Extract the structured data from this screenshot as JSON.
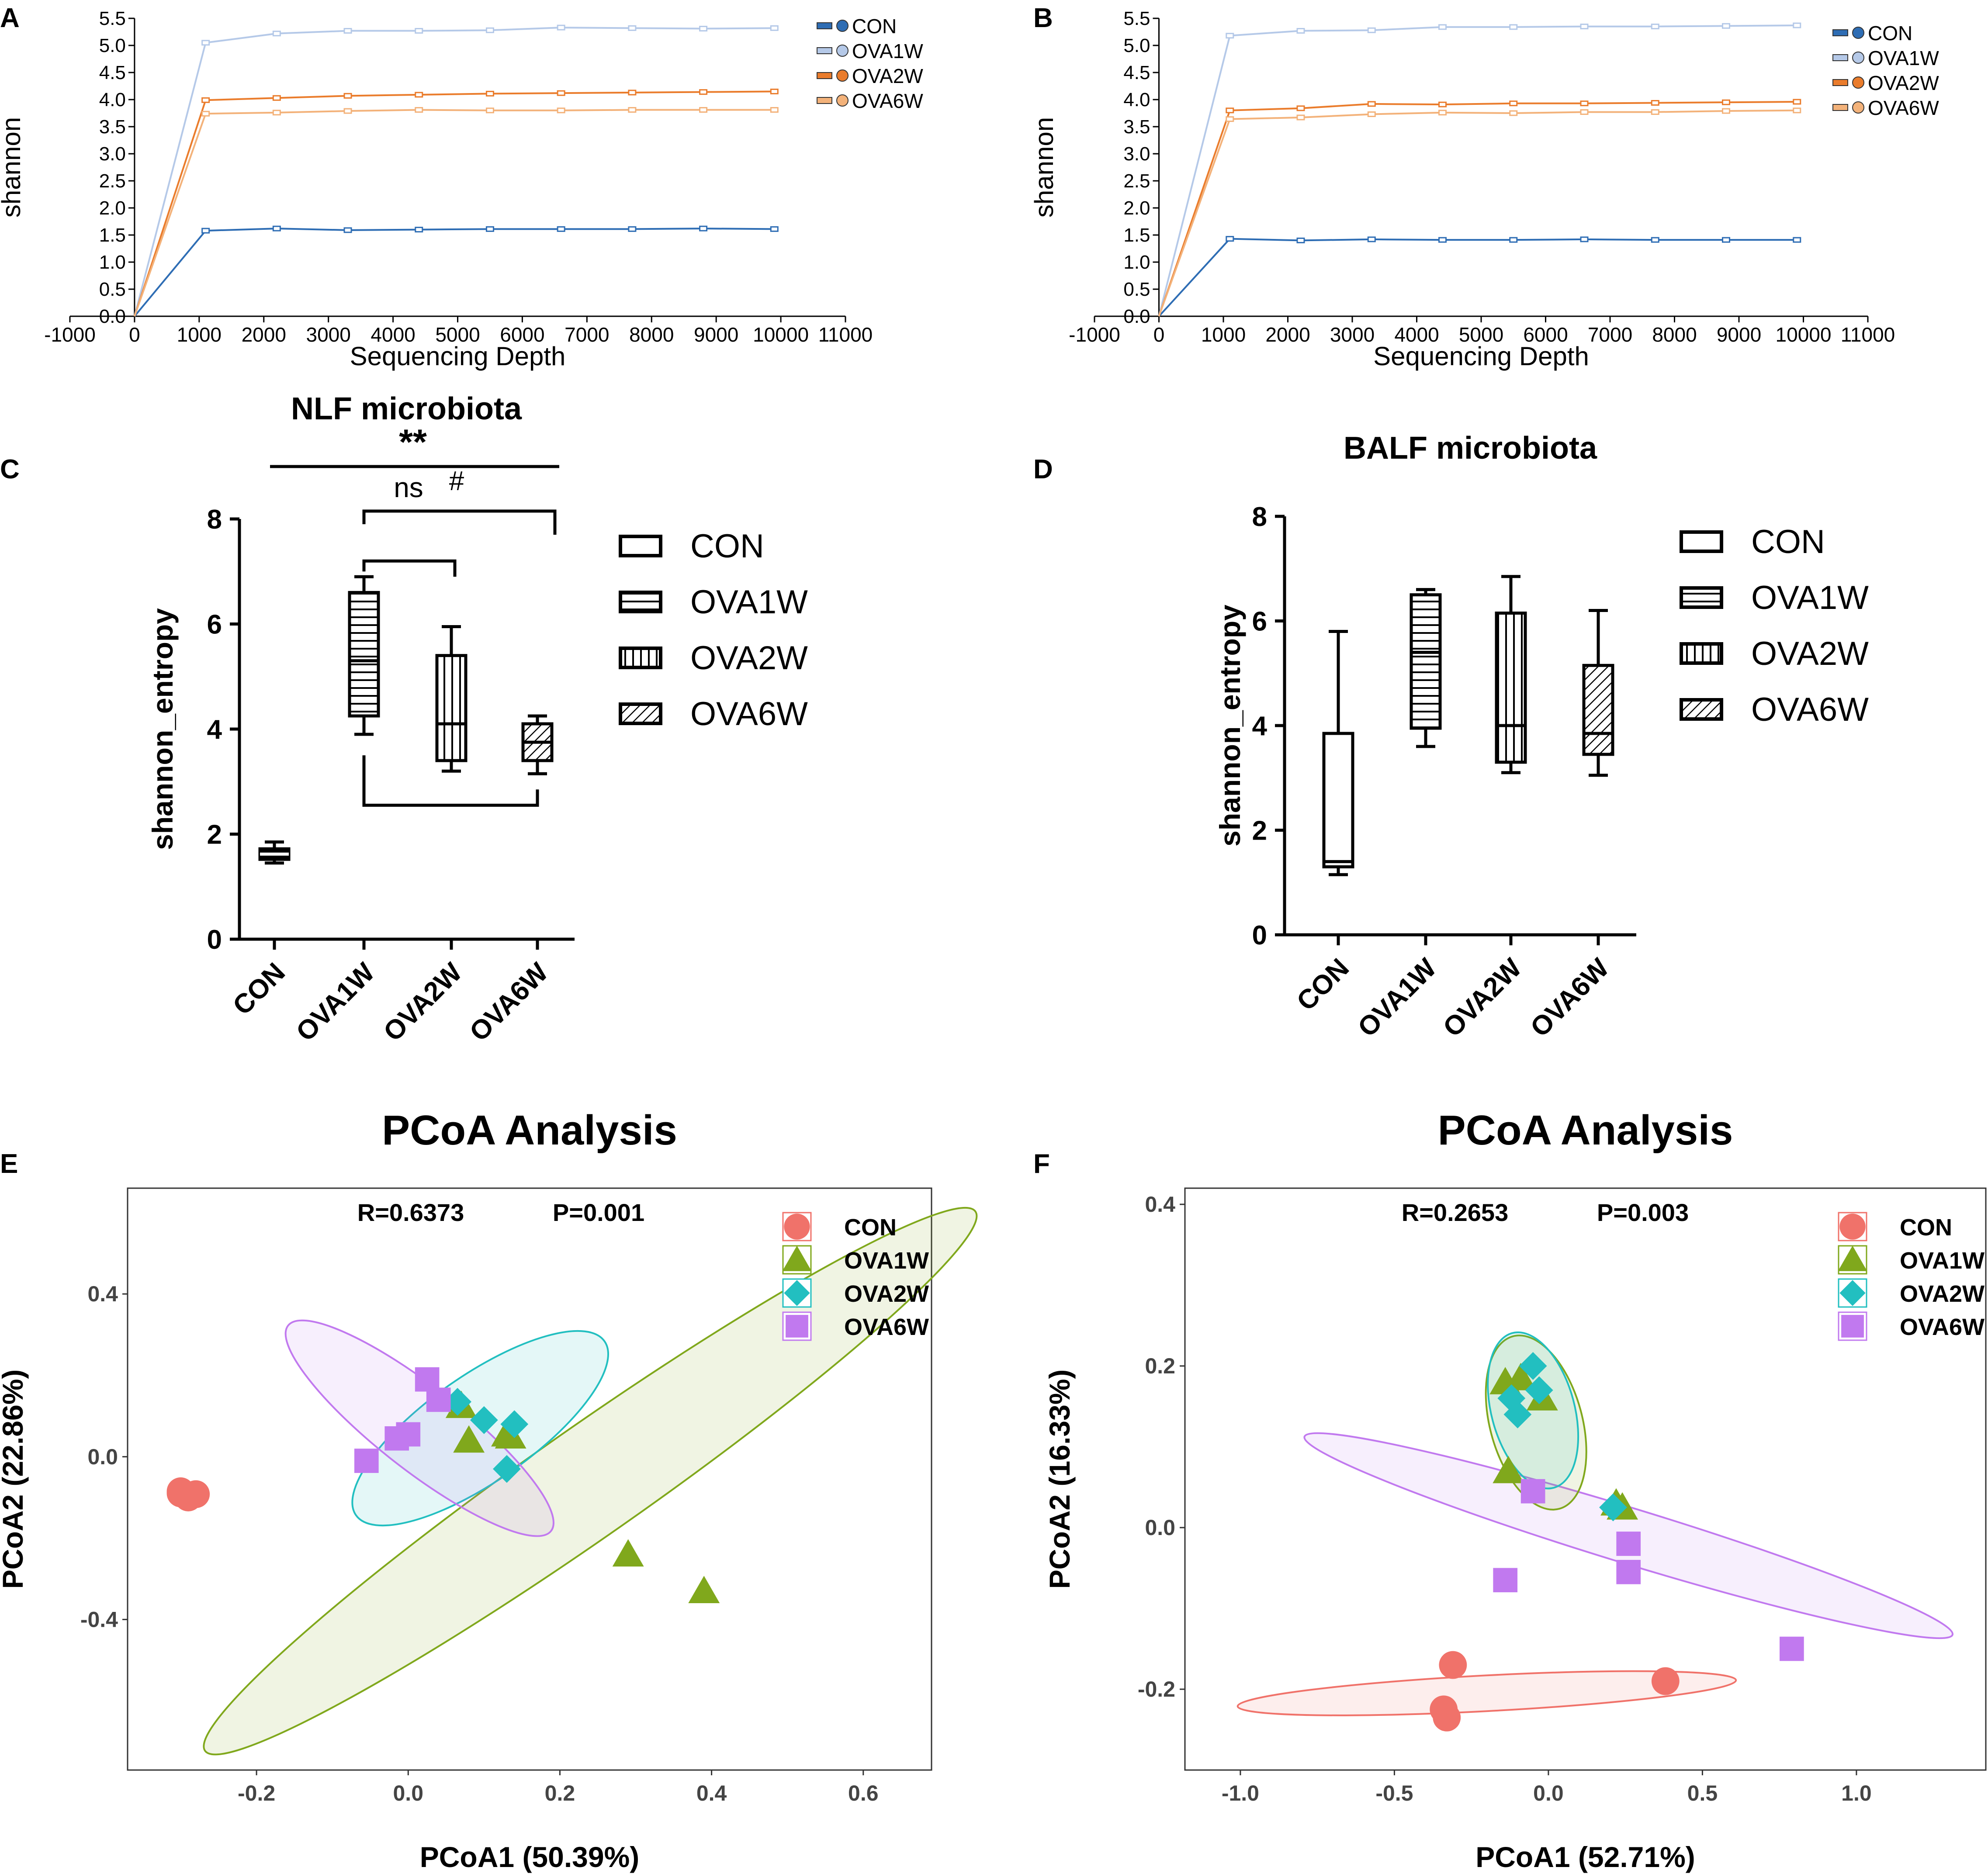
{
  "colors": {
    "CON": "#2e6db4",
    "OVA1W": "#b5c9e8",
    "OVA2W": "#ea7c2c",
    "OVA6W": "#f3b27a",
    "pcoa_CON": "#f0726a",
    "pcoa_OVA1W": "#80a81c",
    "pcoa_OVA2W": "#22bfc0",
    "pcoa_OVA6W": "#c179ef",
    "axis": "#000000"
  },
  "panels": [
    {
      "id": "A",
      "label": "A"
    },
    {
      "id": "B",
      "label": "B"
    },
    {
      "id": "C",
      "label": "C"
    },
    {
      "id": "D",
      "label": "D"
    },
    {
      "id": "E",
      "label": "E"
    },
    {
      "id": "F",
      "label": "F"
    }
  ],
  "chart_data": [
    {
      "id": "A",
      "type": "line",
      "title": "",
      "xlabel": "Sequencing Depth",
      "ylabel": "shannon",
      "xlim": [
        -1000,
        11000
      ],
      "ylim": [
        0,
        5.5
      ],
      "xticks": [
        -1000,
        0,
        1000,
        2000,
        3000,
        4000,
        5000,
        6000,
        7000,
        8000,
        9000,
        10000,
        11000
      ],
      "yticks": [
        0,
        0.5,
        1,
        1.5,
        2,
        2.5,
        3,
        3.5,
        4,
        4.5,
        5,
        5.5
      ],
      "xtick_labels": [
        "-1000",
        "0",
        "1000",
        "2000",
        "3000",
        "4000",
        "5000",
        "6000",
        "7000",
        "8000",
        "9000",
        "10000",
        "11000"
      ],
      "ytick_labels": [
        "0.0",
        "0.5",
        "1.0",
        "1.5",
        "2.0",
        "2.5",
        "3.0",
        "3.5",
        "4.0",
        "4.5",
        "5.0",
        "5.5"
      ],
      "legend": [
        "CON",
        "OVA1W",
        "OVA2W",
        "OVA6W"
      ],
      "legend_position": "top-right",
      "x": [
        0,
        1100,
        2200,
        3300,
        4400,
        5500,
        6600,
        7700,
        8800,
        9900
      ],
      "series": [
        {
          "name": "CON",
          "values": [
            0,
            1.58,
            1.62,
            1.59,
            1.6,
            1.61,
            1.61,
            1.61,
            1.62,
            1.61
          ]
        },
        {
          "name": "OVA1W",
          "values": [
            0,
            5.05,
            5.22,
            5.27,
            5.27,
            5.28,
            5.33,
            5.32,
            5.31,
            5.32
          ]
        },
        {
          "name": "OVA2W",
          "values": [
            0,
            3.99,
            4.03,
            4.07,
            4.09,
            4.11,
            4.12,
            4.13,
            4.14,
            4.15
          ]
        },
        {
          "name": "OVA6W",
          "values": [
            0,
            3.74,
            3.76,
            3.79,
            3.81,
            3.8,
            3.8,
            3.81,
            3.81,
            3.81
          ]
        }
      ]
    },
    {
      "id": "B",
      "type": "line",
      "title": "",
      "xlabel": "Sequencing Depth",
      "ylabel": "shannon",
      "xlim": [
        -1000,
        11000
      ],
      "ylim": [
        0,
        5.5
      ],
      "xticks": [
        -1000,
        0,
        1000,
        2000,
        3000,
        4000,
        5000,
        6000,
        7000,
        8000,
        9000,
        10000,
        11000
      ],
      "yticks": [
        0,
        0.5,
        1,
        1.5,
        2,
        2.5,
        3,
        3.5,
        4,
        4.5,
        5,
        5.5
      ],
      "xtick_labels": [
        "-1000",
        "0",
        "1000",
        "2000",
        "3000",
        "4000",
        "5000",
        "6000",
        "7000",
        "8000",
        "9000",
        "10000",
        "11000"
      ],
      "ytick_labels": [
        "0.0",
        "0.5",
        "1.0",
        "1.5",
        "2.0",
        "2.5",
        "3.0",
        "3.5",
        "4.0",
        "4.5",
        "5.0",
        "5.5"
      ],
      "legend": [
        "CON",
        "OVA1W",
        "OVA2W",
        "OVA6W"
      ],
      "legend_position": "top-right",
      "x": [
        0,
        1100,
        2200,
        3300,
        4400,
        5500,
        6600,
        7700,
        8800,
        9900
      ],
      "series": [
        {
          "name": "CON",
          "values": [
            0,
            1.43,
            1.4,
            1.42,
            1.41,
            1.41,
            1.42,
            1.41,
            1.41,
            1.41
          ]
        },
        {
          "name": "OVA1W",
          "values": [
            0,
            5.18,
            5.27,
            5.28,
            5.34,
            5.34,
            5.35,
            5.35,
            5.36,
            5.37
          ]
        },
        {
          "name": "OVA2W",
          "values": [
            0,
            3.8,
            3.84,
            3.92,
            3.91,
            3.93,
            3.93,
            3.94,
            3.95,
            3.96
          ]
        },
        {
          "name": "OVA6W",
          "values": [
            0,
            3.64,
            3.67,
            3.73,
            3.76,
            3.75,
            3.77,
            3.77,
            3.79,
            3.8
          ]
        }
      ]
    },
    {
      "id": "C",
      "type": "box",
      "title": "NLF microbiota",
      "xlabel": "",
      "ylabel": "shannon_entropy",
      "ylim": [
        0,
        8
      ],
      "yticks": [
        0,
        2,
        4,
        6,
        8
      ],
      "categories": [
        "CON",
        "OVA1W",
        "OVA2W",
        "OVA6W"
      ],
      "legend": [
        "CON",
        "OVA1W",
        "OVA2W",
        "OVA6W"
      ],
      "legend_position": "top-right",
      "boxes": [
        {
          "name": "CON",
          "min": 1.45,
          "q1": 1.52,
          "median": 1.62,
          "q3": 1.72,
          "max": 1.85,
          "pattern": "solid"
        },
        {
          "name": "OVA1W",
          "min": 3.9,
          "q1": 4.25,
          "median": 5.3,
          "q3": 6.6,
          "max": 6.9,
          "pattern": "horizontal"
        },
        {
          "name": "OVA2W",
          "min": 3.2,
          "q1": 3.4,
          "median": 4.1,
          "q3": 5.4,
          "max": 5.95,
          "pattern": "vertical"
        },
        {
          "name": "OVA6W",
          "min": 3.15,
          "q1": 3.4,
          "median": 3.75,
          "q3": 4.1,
          "max": 4.25,
          "pattern": "diagonal"
        }
      ],
      "annotations": [
        {
          "text": "**",
          "between": [
            "CON",
            "OVA6W"
          ]
        },
        {
          "text": "#",
          "between": [
            "CON",
            "OVA6W"
          ]
        },
        {
          "text": "ns",
          "between": [
            "OVA1W",
            "OVA6W"
          ]
        }
      ]
    },
    {
      "id": "D",
      "type": "box",
      "title": "BALF microbiota",
      "xlabel": "",
      "ylabel": "shannon_entropy",
      "ylim": [
        0,
        8
      ],
      "yticks": [
        0,
        2,
        4,
        6,
        8
      ],
      "categories": [
        "CON",
        "OVA1W",
        "OVA2W",
        "OVA6W"
      ],
      "legend": [
        "CON",
        "OVA1W",
        "OVA2W",
        "OVA6W"
      ],
      "legend_position": "top-right",
      "boxes": [
        {
          "name": "CON",
          "min": 1.15,
          "q1": 1.3,
          "median": 1.4,
          "q3": 3.85,
          "max": 5.8,
          "pattern": "none"
        },
        {
          "name": "OVA1W",
          "min": 3.6,
          "q1": 3.95,
          "median": 5.4,
          "q3": 6.5,
          "max": 6.6,
          "pattern": "horizontal"
        },
        {
          "name": "OVA2W",
          "min": 3.1,
          "q1": 3.3,
          "median": 4.0,
          "q3": 6.15,
          "max": 6.85,
          "pattern": "vertical"
        },
        {
          "name": "OVA6W",
          "min": 3.05,
          "q1": 3.45,
          "median": 3.85,
          "q3": 5.15,
          "max": 6.2,
          "pattern": "diagonal"
        }
      ]
    },
    {
      "id": "E",
      "type": "scatter",
      "title": "PCoA Analysis",
      "xlabel": "PCoA1 (50.39%)",
      "ylabel": "PCoA2 (22.86%)",
      "xlim": [
        -0.37,
        0.69
      ],
      "ylim": [
        -0.77,
        0.66
      ],
      "xticks": [
        -0.2,
        0.0,
        0.2,
        0.4,
        0.6
      ],
      "xtick_labels": [
        "-0.2",
        "0.0",
        "0.2",
        "0.4",
        "0.6"
      ],
      "yticks": [
        -0.4,
        0.0,
        0.4
      ],
      "ytick_labels": [
        "-0.4",
        "0.0",
        "0.4"
      ],
      "stat_R": "R=0.6373",
      "stat_P": "P=0.001",
      "legend": [
        "CON",
        "OVA1W",
        "OVA2W",
        "OVA6W"
      ],
      "legend_position": "top-right",
      "series": [
        {
          "name": "CON",
          "marker": "circle",
          "x": [
            -0.3,
            -0.29,
            -0.28,
            -0.29,
            -0.3
          ],
          "y": [
            -0.09,
            -0.095,
            -0.092,
            -0.1,
            -0.085
          ]
        },
        {
          "name": "OVA1W",
          "marker": "triangle",
          "x": [
            0.07,
            0.08,
            0.13,
            0.135,
            0.29,
            0.39
          ],
          "y": [
            0.125,
            0.04,
            0.055,
            0.05,
            -0.24,
            -0.33
          ]
        },
        {
          "name": "OVA2W",
          "marker": "diamond",
          "x": [
            0.065,
            0.1,
            0.14,
            0.13
          ],
          "y": [
            0.135,
            0.09,
            0.08,
            -0.03
          ]
        },
        {
          "name": "OVA6W",
          "marker": "square",
          "x": [
            -0.055,
            -0.015,
            0.0,
            0.025,
            0.04
          ],
          "y": [
            -0.01,
            0.045,
            0.055,
            0.19,
            0.14
          ]
        }
      ],
      "ellipses": [
        {
          "name": "OVA1W",
          "cx": 0.24,
          "cy": -0.06,
          "rx": 0.62,
          "ry": 0.072,
          "angle_deg": 35.0
        },
        {
          "name": "OVA2W",
          "cx": 0.095,
          "cy": 0.07,
          "rx": 0.2,
          "ry": 0.07,
          "angle_deg": 35.0
        },
        {
          "name": "OVA6W",
          "cx": 0.015,
          "cy": 0.07,
          "rx": 0.22,
          "ry": 0.055,
          "angle_deg": -38.0
        }
      ]
    },
    {
      "id": "F",
      "type": "scatter",
      "title": "PCoA Analysis",
      "xlabel": "PCoA1 (52.71%)",
      "ylabel": "PCoA2 (16.33%)",
      "xlim": [
        -1.18,
        1.42
      ],
      "ylim": [
        -0.3,
        0.42
      ],
      "xticks": [
        -1.0,
        -0.5,
        0.0,
        0.5,
        1.0
      ],
      "xtick_labels": [
        "-1.0",
        "-0.5",
        "0.0",
        "0.5",
        "1.0"
      ],
      "yticks": [
        -0.2,
        0.0,
        0.2,
        0.4
      ],
      "ytick_labels": [
        "-0.2",
        "0.0",
        "0.2",
        "0.4"
      ],
      "stat_R": "R=0.2653",
      "stat_P": "P=0.003",
      "legend": [
        "CON",
        "OVA1W",
        "OVA2W",
        "OVA6W"
      ],
      "legend_position": "top-right",
      "series": [
        {
          "name": "CON",
          "marker": "circle",
          "x": [
            -0.31,
            -0.34,
            -0.33,
            0.38
          ],
          "y": [
            -0.17,
            -0.225,
            -0.235,
            -0.19
          ]
        },
        {
          "name": "OVA1W",
          "marker": "triangle",
          "x": [
            -0.14,
            -0.09,
            -0.02,
            -0.13,
            0.22,
            0.24
          ],
          "y": [
            0.18,
            0.185,
            0.16,
            0.07,
            0.03,
            0.025
          ]
        },
        {
          "name": "OVA2W",
          "marker": "diamond",
          "x": [
            -0.12,
            -0.05,
            -0.03,
            -0.1,
            0.21
          ],
          "y": [
            0.16,
            0.2,
            0.17,
            0.14,
            0.025
          ]
        },
        {
          "name": "OVA6W",
          "marker": "square",
          "x": [
            -0.05,
            -0.14,
            0.26,
            0.26,
            0.79
          ],
          "y": [
            0.045,
            -0.065,
            -0.02,
            -0.055,
            -0.15
          ]
        }
      ],
      "ellipses": [
        {
          "name": "CON",
          "cx": -0.2,
          "cy": -0.205,
          "rx": 0.81,
          "ry": 0.058,
          "angle_deg": 3.0
        },
        {
          "name": "OVA6W",
          "cx": 0.26,
          "cy": -0.01,
          "rx": 1.1,
          "ry": 0.09,
          "angle_deg": -17.0
        },
        {
          "name": "OVA1W",
          "cx": -0.04,
          "cy": 0.13,
          "rx": 0.29,
          "ry": 0.15,
          "angle_deg": -75.0
        },
        {
          "name": "OVA2W",
          "cx": -0.05,
          "cy": 0.145,
          "rx": 0.26,
          "ry": 0.135,
          "angle_deg": -75.0
        }
      ]
    }
  ]
}
